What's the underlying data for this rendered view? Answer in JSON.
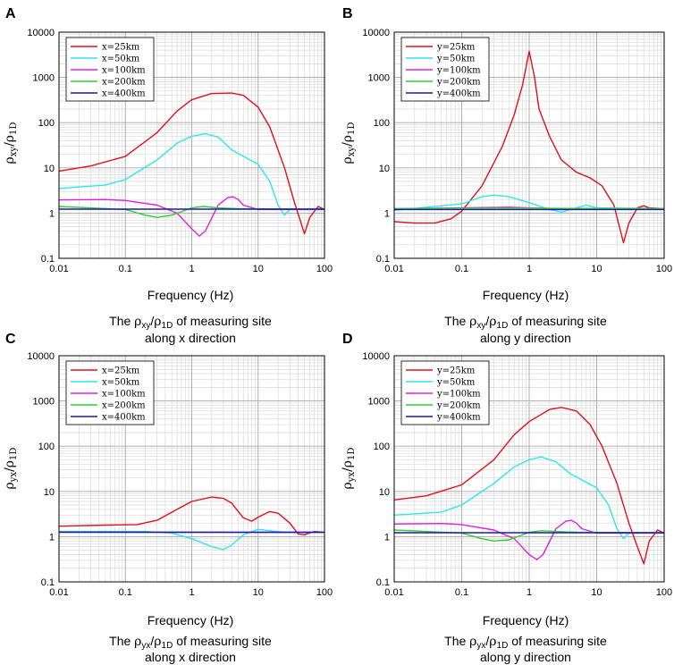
{
  "chart_data": [
    {
      "panel": "A",
      "type": "line",
      "x_scale": "log",
      "y_scale": "log",
      "xlabel": "Frequency (Hz)",
      "ylabel": {
        "base": "ρ",
        "num_sub": "xy",
        "den_sub": "1D"
      },
      "caption": {
        "line1_pre": "The ",
        "line1_sym": "ρ",
        "line1_sub1": "xy",
        "line1_mid": "/",
        "line1_sym2": "ρ",
        "line1_sub2": "1D",
        "line1_post": " of measuring site",
        "line2": "along x direction"
      },
      "xlim": [
        0.01,
        100
      ],
      "ylim": [
        0.1,
        10000
      ],
      "xticks": [
        "0.01",
        "0.1",
        "1",
        "10",
        "100"
      ],
      "yticks": [
        "0.1",
        "1",
        "10",
        "100",
        "1000",
        "10000"
      ],
      "series": [
        {
          "name": "x=25km",
          "color": "#e0101a",
          "points": [
            [
              0.01,
              8.5
            ],
            [
              0.03,
              11
            ],
            [
              0.1,
              18
            ],
            [
              0.3,
              60
            ],
            [
              0.6,
              180
            ],
            [
              1,
              320
            ],
            [
              2,
              440
            ],
            [
              4,
              450
            ],
            [
              6,
              400
            ],
            [
              10,
              220
            ],
            [
              15,
              80
            ],
            [
              25,
              10
            ],
            [
              35,
              1.8
            ],
            [
              50,
              0.35
            ],
            [
              60,
              0.8
            ],
            [
              80,
              1.4
            ],
            [
              100,
              1.2
            ]
          ]
        },
        {
          "name": "x=50km",
          "color": "#2ee6ee",
          "points": [
            [
              0.01,
              3.5
            ],
            [
              0.05,
              4.2
            ],
            [
              0.1,
              5.5
            ],
            [
              0.3,
              15
            ],
            [
              0.6,
              35
            ],
            [
              1,
              50
            ],
            [
              1.6,
              57
            ],
            [
              2.5,
              48
            ],
            [
              4,
              25
            ],
            [
              6,
              18
            ],
            [
              10,
              12
            ],
            [
              15,
              5
            ],
            [
              20,
              1.5
            ],
            [
              25,
              0.9
            ],
            [
              30,
              1.2
            ],
            [
              100,
              1.2
            ]
          ]
        },
        {
          "name": "x=100km",
          "color": "#dd22dd",
          "points": [
            [
              0.01,
              1.95
            ],
            [
              0.05,
              2.0
            ],
            [
              0.1,
              1.9
            ],
            [
              0.3,
              1.5
            ],
            [
              0.6,
              1.0
            ],
            [
              1,
              0.45
            ],
            [
              1.3,
              0.31
            ],
            [
              1.6,
              0.4
            ],
            [
              2.5,
              1.5
            ],
            [
              3.5,
              2.2
            ],
            [
              4.2,
              2.3
            ],
            [
              5,
              2.0
            ],
            [
              6,
              1.5
            ],
            [
              10,
              1.2
            ],
            [
              100,
              1.2
            ]
          ]
        },
        {
          "name": "x=200km",
          "color": "#33cc33",
          "points": [
            [
              0.01,
              1.4
            ],
            [
              0.1,
              1.2
            ],
            [
              0.2,
              0.9
            ],
            [
              0.3,
              0.8
            ],
            [
              0.5,
              0.9
            ],
            [
              1,
              1.3
            ],
            [
              1.5,
              1.4
            ],
            [
              2.5,
              1.3
            ],
            [
              5,
              1.25
            ],
            [
              100,
              1.22
            ]
          ]
        },
        {
          "name": "x=400km",
          "color": "#1a1ab0",
          "points": [
            [
              0.01,
              1.22
            ],
            [
              100,
              1.22
            ]
          ]
        }
      ]
    },
    {
      "panel": "B",
      "type": "line",
      "x_scale": "log",
      "y_scale": "log",
      "xlabel": "Frequency (Hz)",
      "ylabel": {
        "base": "ρ",
        "num_sub": "xy",
        "den_sub": "1D"
      },
      "caption": {
        "line1_pre": "The ",
        "line1_sym": "ρ",
        "line1_sub1": "xy",
        "line1_mid": "/",
        "line1_sym2": "ρ",
        "line1_sub2": "1D",
        "line1_post": " of measuring site",
        "line2": "along y direction"
      },
      "xlim": [
        0.01,
        100
      ],
      "ylim": [
        0.1,
        10000
      ],
      "xticks": [
        "0.01",
        "0.1",
        "1",
        "10",
        "100"
      ],
      "yticks": [
        "0.1",
        "1",
        "10",
        "100",
        "1000",
        "10000"
      ],
      "series": [
        {
          "name": "y=25km",
          "color": "#e0101a",
          "points": [
            [
              0.01,
              0.65
            ],
            [
              0.02,
              0.6
            ],
            [
              0.04,
              0.6
            ],
            [
              0.07,
              0.75
            ],
            [
              0.1,
              1.1
            ],
            [
              0.2,
              4
            ],
            [
              0.4,
              30
            ],
            [
              0.6,
              150
            ],
            [
              0.8,
              700
            ],
            [
              1,
              3800
            ],
            [
              1.2,
              1000
            ],
            [
              1.4,
              200
            ],
            [
              2,
              50
            ],
            [
              3,
              15
            ],
            [
              5,
              8
            ],
            [
              8,
              6
            ],
            [
              12,
              4
            ],
            [
              18,
              1.5
            ],
            [
              25,
              0.22
            ],
            [
              30,
              0.6
            ],
            [
              40,
              1.3
            ],
            [
              50,
              1.45
            ],
            [
              60,
              1.3
            ],
            [
              100,
              1.25
            ]
          ]
        },
        {
          "name": "y=50km",
          "color": "#2ee6ee",
          "points": [
            [
              0.01,
              1.15
            ],
            [
              0.1,
              1.6
            ],
            [
              0.2,
              2.3
            ],
            [
              0.3,
              2.5
            ],
            [
              0.5,
              2.3
            ],
            [
              1,
              1.7
            ],
            [
              2,
              1.2
            ],
            [
              3,
              1.05
            ],
            [
              5,
              1.3
            ],
            [
              7,
              1.5
            ],
            [
              10,
              1.3
            ],
            [
              100,
              1.25
            ]
          ]
        },
        {
          "name": "y=100km",
          "color": "#dd22dd",
          "points": [
            [
              0.01,
              1.25
            ],
            [
              0.1,
              1.3
            ],
            [
              0.5,
              1.35
            ],
            [
              1,
              1.3
            ],
            [
              3,
              1.25
            ],
            [
              100,
              1.25
            ]
          ]
        },
        {
          "name": "y=200km",
          "color": "#33cc33",
          "points": [
            [
              0.01,
              1.25
            ],
            [
              0.1,
              1.27
            ],
            [
              1,
              1.28
            ],
            [
              100,
              1.25
            ]
          ]
        },
        {
          "name": "y=400km",
          "color": "#1a1ab0",
          "points": [
            [
              0.01,
              1.2
            ],
            [
              100,
              1.2
            ]
          ]
        }
      ]
    },
    {
      "panel": "C",
      "type": "line",
      "x_scale": "log",
      "y_scale": "log",
      "xlabel": "Frequency (Hz)",
      "ylabel": {
        "base": "ρ",
        "num_sub": "yx",
        "den_sub": "1D"
      },
      "caption": {
        "line1_pre": "The ",
        "line1_sym": "ρ",
        "line1_sub1": "yx",
        "line1_mid": "/",
        "line1_sym2": "ρ",
        "line1_sub2": "1D",
        "line1_post": " of measuring site",
        "line2": "along x direction"
      },
      "xlim": [
        0.01,
        100
      ],
      "ylim": [
        0.1,
        10000
      ],
      "xticks": [
        "0.01",
        "0.1",
        "1",
        "10",
        "100"
      ],
      "yticks": [
        "0.1",
        "1",
        "10",
        "100",
        "1000",
        "10000"
      ],
      "series": [
        {
          "name": "x=25km",
          "color": "#e0101a",
          "points": [
            [
              0.01,
              1.7
            ],
            [
              0.05,
              1.8
            ],
            [
              0.15,
              1.85
            ],
            [
              0.3,
              2.3
            ],
            [
              0.6,
              4
            ],
            [
              1,
              6
            ],
            [
              2,
              7.5
            ],
            [
              3,
              7
            ],
            [
              4,
              5.5
            ],
            [
              6,
              2.6
            ],
            [
              8,
              2.2
            ],
            [
              10,
              2.7
            ],
            [
              15,
              3.6
            ],
            [
              20,
              3.3
            ],
            [
              30,
              2
            ],
            [
              40,
              1.15
            ],
            [
              50,
              1.1
            ],
            [
              70,
              1.3
            ],
            [
              100,
              1.25
            ]
          ]
        },
        {
          "name": "x=50km",
          "color": "#2ee6ee",
          "points": [
            [
              0.01,
              1.3
            ],
            [
              0.2,
              1.3
            ],
            [
              0.5,
              1.2
            ],
            [
              1,
              0.9
            ],
            [
              2,
              0.6
            ],
            [
              3,
              0.52
            ],
            [
              4,
              0.65
            ],
            [
              6,
              1.1
            ],
            [
              10,
              1.45
            ],
            [
              15,
              1.35
            ],
            [
              25,
              1.25
            ],
            [
              100,
              1.25
            ]
          ]
        },
        {
          "name": "x=100km",
          "color": "#dd22dd",
          "points": [
            [
              0.01,
              1.27
            ],
            [
              1,
              1.25
            ],
            [
              10,
              1.25
            ],
            [
              100,
              1.25
            ]
          ]
        },
        {
          "name": "x=200km",
          "color": "#33cc33",
          "points": [
            [
              0.01,
              1.26
            ],
            [
              100,
              1.25
            ]
          ]
        },
        {
          "name": "x=400km",
          "color": "#1a1ab0",
          "points": [
            [
              0.01,
              1.25
            ],
            [
              100,
              1.25
            ]
          ]
        }
      ]
    },
    {
      "panel": "D",
      "type": "line",
      "x_scale": "log",
      "y_scale": "log",
      "xlabel": "Frequency (Hz)",
      "ylabel": {
        "base": "ρ",
        "num_sub": "yx",
        "den_sub": "1D"
      },
      "caption": {
        "line1_pre": "The ",
        "line1_sym": "ρ",
        "line1_sub1": "yx",
        "line1_mid": "/",
        "line1_sym2": "ρ",
        "line1_sub2": "1D",
        "line1_post": " of measuring site",
        "line2": "along y direction"
      },
      "xlim": [
        0.01,
        100
      ],
      "ylim": [
        0.1,
        10000
      ],
      "xticks": [
        "0.01",
        "0.1",
        "1",
        "10",
        "100"
      ],
      "yticks": [
        "0.1",
        "1",
        "10",
        "100",
        "1000",
        "10000"
      ],
      "series": [
        {
          "name": "y=25km",
          "color": "#e0101a",
          "points": [
            [
              0.01,
              6.5
            ],
            [
              0.03,
              8
            ],
            [
              0.1,
              14
            ],
            [
              0.3,
              50
            ],
            [
              0.6,
              180
            ],
            [
              1,
              350
            ],
            [
              2,
              650
            ],
            [
              3,
              720
            ],
            [
              5,
              600
            ],
            [
              8,
              300
            ],
            [
              12,
              100
            ],
            [
              20,
              15
            ],
            [
              30,
              2
            ],
            [
              40,
              0.6
            ],
            [
              50,
              0.25
            ],
            [
              60,
              0.8
            ],
            [
              80,
              1.4
            ],
            [
              100,
              1.2
            ]
          ]
        },
        {
          "name": "y=50km",
          "color": "#2ee6ee",
          "points": [
            [
              0.01,
              3
            ],
            [
              0.05,
              3.5
            ],
            [
              0.1,
              5
            ],
            [
              0.3,
              15
            ],
            [
              0.6,
              35
            ],
            [
              1,
              50
            ],
            [
              1.5,
              58
            ],
            [
              2.5,
              45
            ],
            [
              4,
              25
            ],
            [
              6,
              18
            ],
            [
              10,
              12
            ],
            [
              15,
              5
            ],
            [
              20,
              1.5
            ],
            [
              25,
              0.9
            ],
            [
              30,
              1.2
            ],
            [
              100,
              1.2
            ]
          ]
        },
        {
          "name": "y=100km",
          "color": "#dd22dd",
          "points": [
            [
              0.01,
              1.9
            ],
            [
              0.05,
              1.95
            ],
            [
              0.1,
              1.85
            ],
            [
              0.3,
              1.4
            ],
            [
              0.6,
              0.9
            ],
            [
              1,
              0.4
            ],
            [
              1.3,
              0.31
            ],
            [
              1.6,
              0.4
            ],
            [
              2.5,
              1.5
            ],
            [
              3.5,
              2.2
            ],
            [
              4.2,
              2.3
            ],
            [
              5,
              2.0
            ],
            [
              6,
              1.5
            ],
            [
              10,
              1.2
            ],
            [
              100,
              1.2
            ]
          ]
        },
        {
          "name": "y=200km",
          "color": "#33cc33",
          "points": [
            [
              0.01,
              1.4
            ],
            [
              0.1,
              1.2
            ],
            [
              0.2,
              0.9
            ],
            [
              0.3,
              0.8
            ],
            [
              0.5,
              0.85
            ],
            [
              1,
              1.25
            ],
            [
              1.5,
              1.35
            ],
            [
              2.5,
              1.3
            ],
            [
              5,
              1.25
            ],
            [
              100,
              1.22
            ]
          ]
        },
        {
          "name": "y=400km",
          "color": "#1a1ab0",
          "points": [
            [
              0.01,
              1.22
            ],
            [
              100,
              1.22
            ]
          ]
        }
      ]
    }
  ]
}
